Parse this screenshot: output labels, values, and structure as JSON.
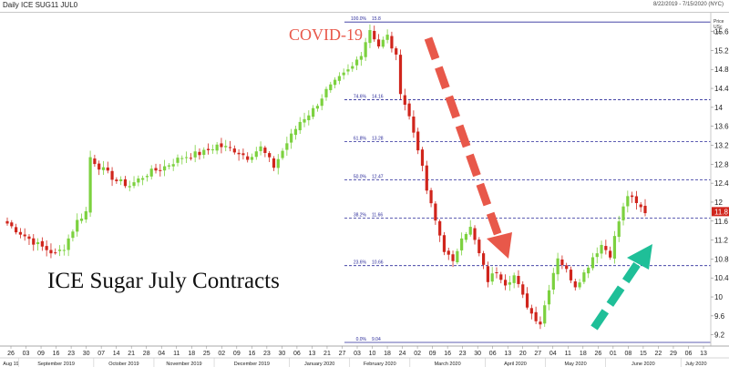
{
  "header": {
    "title": "Daily ICE SUG11 JUL0",
    "date_range": "8/22/2019 - 7/15/2020 (NYC)"
  },
  "axis_units": [
    "Price",
    "USc",
    "Lbs"
  ],
  "last_price_label": "11.8",
  "annotations": {
    "covid": "COVID-19",
    "chart_title": "ICE Sugar July Contracts"
  },
  "fib_levels": [
    {
      "pct": "100.0%",
      "value": "15.8"
    },
    {
      "pct": "74.6%",
      "value": "14.16"
    },
    {
      "pct": "61.8%",
      "value": "13.28"
    },
    {
      "pct": "50.0%",
      "value": "12.47"
    },
    {
      "pct": "38.2%",
      "value": "11.66"
    },
    {
      "pct": "23.6%",
      "value": "10.66"
    },
    {
      "pct": "0.0%",
      "value": "9.04"
    }
  ],
  "colors": {
    "up_candle": "#7cd13f",
    "down_candle": "#d0251c",
    "fib_line": "#2a2a9a",
    "covid_text": "#e8584a",
    "down_arrow": "#e8584a",
    "up_arrow": "#1fbf98",
    "last_price_box": "#d0251c"
  },
  "chart_data": {
    "type": "candlestick",
    "title": "",
    "series_name": "ICE SUG11 JUL0",
    "ylim": [
      9.04,
      15.9
    ],
    "yticks": [
      9.2,
      9.6,
      10.0,
      10.4,
      10.8,
      11.2,
      11.6,
      12.0,
      12.4,
      12.8,
      13.2,
      13.6,
      14.0,
      14.4,
      14.8,
      15.2,
      15.6
    ],
    "ytick_labels": [
      "9.2",
      "9.6",
      "10",
      "10.4",
      "10.8",
      "11.2",
      "11.6",
      "12",
      "12.4",
      "12.8",
      "13.2",
      "13.6",
      "14",
      "14.4",
      "14.8",
      "15.2",
      "15.6"
    ],
    "x_day_ticks": [
      "26",
      "03",
      "09",
      "16",
      "23",
      "30",
      "07",
      "14",
      "21",
      "28",
      "04",
      "11",
      "18",
      "25",
      "02",
      "09",
      "16",
      "23",
      "30",
      "06",
      "13",
      "21",
      "27",
      "03",
      "10",
      "18",
      "24",
      "02",
      "09",
      "16",
      "23",
      "30",
      "06",
      "13",
      "20",
      "27",
      "04",
      "11",
      "18",
      "26",
      "01",
      "08",
      "15",
      "22",
      "29",
      "06",
      "13"
    ],
    "month_labels": [
      "Aug 19",
      "September 2019",
      "October 2019",
      "November 2019",
      "December 2019",
      "January 2020",
      "February 2020",
      "March 2020",
      "April 2020",
      "May 2020",
      "June 2020",
      "July 2020"
    ],
    "close_anchors": [
      [
        0,
        11.55
      ],
      [
        3,
        11.35
      ],
      [
        7,
        11.1
      ],
      [
        11,
        10.9
      ],
      [
        13,
        11.05
      ],
      [
        16,
        11.6
      ],
      [
        18,
        11.8
      ],
      [
        19,
        12.95
      ],
      [
        21,
        12.75
      ],
      [
        25,
        12.45
      ],
      [
        28,
        12.35
      ],
      [
        32,
        12.6
      ],
      [
        36,
        12.75
      ],
      [
        40,
        12.95
      ],
      [
        45,
        13.05
      ],
      [
        48,
        13.2
      ],
      [
        52,
        13.1
      ],
      [
        55,
        12.95
      ],
      [
        58,
        13.15
      ],
      [
        61,
        12.75
      ],
      [
        64,
        13.25
      ],
      [
        67,
        13.7
      ],
      [
        70,
        13.95
      ],
      [
        73,
        14.35
      ],
      [
        76,
        14.6
      ],
      [
        79,
        14.85
      ],
      [
        81,
        15.15
      ],
      [
        83,
        15.65
      ],
      [
        85,
        15.3
      ],
      [
        87,
        15.5
      ],
      [
        89,
        15.05
      ],
      [
        90,
        14.35
      ],
      [
        92,
        13.8
      ],
      [
        94,
        13.15
      ],
      [
        96,
        12.25
      ],
      [
        98,
        11.6
      ],
      [
        100,
        11.0
      ],
      [
        102,
        10.7
      ],
      [
        104,
        11.3
      ],
      [
        106,
        11.45
      ],
      [
        108,
        10.9
      ],
      [
        110,
        10.35
      ],
      [
        112,
        10.55
      ],
      [
        114,
        10.3
      ],
      [
        116,
        10.45
      ],
      [
        118,
        10.0
      ],
      [
        120,
        9.65
      ],
      [
        122,
        9.45
      ],
      [
        124,
        10.2
      ],
      [
        126,
        10.85
      ],
      [
        128,
        10.55
      ],
      [
        130,
        10.25
      ],
      [
        132,
        10.5
      ],
      [
        134,
        10.85
      ],
      [
        136,
        11.1
      ],
      [
        138,
        10.9
      ],
      [
        140,
        11.6
      ],
      [
        142,
        12.15
      ],
      [
        144,
        11.95
      ],
      [
        146,
        11.8
      ]
    ]
  }
}
